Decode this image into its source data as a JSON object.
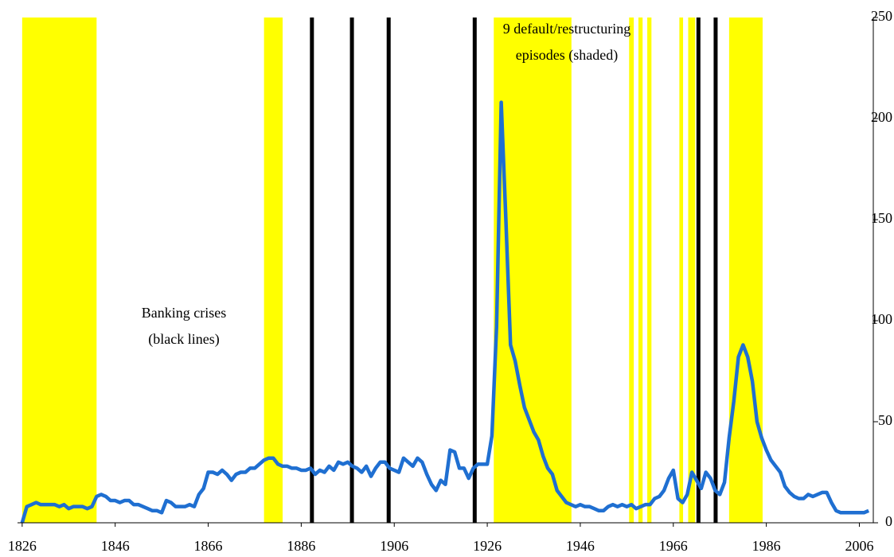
{
  "chart_data": {
    "type": "line",
    "annotations": [
      [
        "9 default/restructuring",
        "episodes (shaded)"
      ],
      [
        "Banking crises",
        "(black lines)"
      ]
    ],
    "x": [
      1826,
      1827,
      1828,
      1829,
      1830,
      1831,
      1832,
      1833,
      1834,
      1835,
      1836,
      1837,
      1838,
      1839,
      1840,
      1841,
      1842,
      1843,
      1844,
      1845,
      1846,
      1847,
      1848,
      1849,
      1850,
      1851,
      1852,
      1853,
      1854,
      1855,
      1856,
      1857,
      1858,
      1859,
      1860,
      1861,
      1862,
      1863,
      1864,
      1865,
      1866,
      1867,
      1868,
      1869,
      1870,
      1871,
      1872,
      1873,
      1874,
      1875,
      1876,
      1877,
      1878,
      1879,
      1880,
      1881,
      1882,
      1883,
      1884,
      1885,
      1886,
      1887,
      1888,
      1889,
      1890,
      1891,
      1892,
      1893,
      1894,
      1895,
      1896,
      1897,
      1898,
      1899,
      1900,
      1901,
      1902,
      1903,
      1904,
      1905,
      1906,
      1907,
      1908,
      1909,
      1910,
      1911,
      1912,
      1913,
      1914,
      1915,
      1916,
      1917,
      1918,
      1919,
      1920,
      1921,
      1922,
      1923,
      1924,
      1925,
      1926,
      1927,
      1928,
      1929,
      1930,
      1931,
      1932,
      1933,
      1934,
      1935,
      1936,
      1937,
      1938,
      1939,
      1940,
      1941,
      1942,
      1943,
      1944,
      1945,
      1946,
      1947,
      1948,
      1949,
      1950,
      1951,
      1952,
      1953,
      1954,
      1955,
      1956,
      1957,
      1958,
      1959,
      1960,
      1961,
      1962,
      1963,
      1964,
      1965,
      1966,
      1967,
      1968,
      1969,
      1970,
      1971,
      1972,
      1973,
      1974,
      1975,
      1976,
      1977,
      1978,
      1979,
      1980,
      1981,
      1982,
      1983,
      1984,
      1985,
      1986,
      1987,
      1988,
      1989,
      1990,
      1991,
      1992,
      1993,
      1994,
      1995,
      1996,
      1997,
      1998,
      1999,
      2000,
      2001,
      2002,
      2003,
      2004,
      2005,
      2006,
      2007,
      2008
    ],
    "values": [
      0,
      8,
      9,
      10,
      9,
      9,
      9,
      9,
      8,
      9,
      7,
      8,
      8,
      8,
      7,
      8,
      13,
      14,
      13,
      11,
      11,
      10,
      11,
      11,
      9,
      9,
      8,
      7,
      6,
      6,
      5,
      11,
      10,
      8,
      8,
      8,
      9,
      8,
      14,
      17,
      25,
      25,
      24,
      26,
      24,
      21,
      24,
      25,
      25,
      27,
      27,
      29,
      31,
      32,
      32,
      29,
      28,
      28,
      27,
      27,
      26,
      26,
      27,
      24,
      26,
      25,
      28,
      26,
      30,
      29,
      30,
      28,
      27,
      25,
      28,
      23,
      27,
      30,
      30,
      27,
      26,
      25,
      32,
      30,
      28,
      32,
      30,
      24,
      19,
      16,
      21,
      19,
      36,
      35,
      27,
      27,
      22,
      27,
      29,
      29,
      29,
      43,
      97,
      208,
      150,
      88,
      80,
      68,
      57,
      51,
      45,
      41,
      33,
      27,
      24,
      16,
      13,
      10,
      9,
      8,
      9,
      8,
      8,
      7,
      6,
      6,
      8,
      9,
      8,
      9,
      8,
      9,
      7,
      8,
      9,
      9,
      12,
      13,
      16,
      22,
      26,
      12,
      10,
      14,
      25,
      21,
      17,
      25,
      22,
      16,
      14,
      20,
      42,
      60,
      82,
      88,
      82,
      70,
      50,
      42,
      36,
      31,
      28,
      25,
      18,
      15,
      13,
      12,
      12,
      14,
      13,
      14,
      15,
      15,
      10,
      6,
      5,
      5,
      5,
      5,
      5,
      5,
      6
    ],
    "color": "#1f6fd1",
    "shaded_episodes": [
      [
        1826,
        1842
      ],
      [
        1878,
        1882
      ],
      [
        1927.4,
        1944.1
      ],
      [
        1956.5,
        1957.5
      ],
      [
        1958.5,
        1959.4
      ],
      [
        1960.4,
        1961.3
      ],
      [
        1967.3,
        1968.1
      ],
      [
        1969.2,
        1970.7
      ],
      [
        1978,
        1985.2
      ]
    ],
    "shade_color": "#ffff00",
    "banking_crises": [
      1888.3,
      1896.9,
      1904.8,
      1923.3,
      1971.4,
      1975.1
    ],
    "crisis_color": "#000000",
    "xlim": [
      1825,
      2009
    ],
    "xticks": [
      1826,
      1846,
      1866,
      1886,
      1906,
      1926,
      1946,
      1966,
      1986,
      2006
    ],
    "ylim": [
      0,
      250
    ],
    "yticks": [
      0,
      50,
      100,
      150,
      200,
      250
    ]
  }
}
